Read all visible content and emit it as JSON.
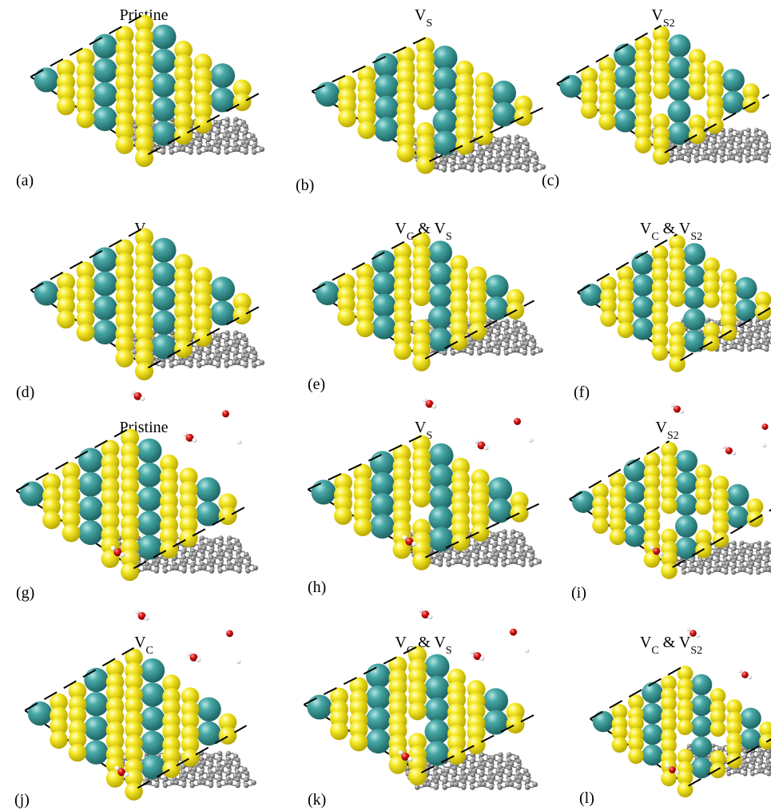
{
  "figure": {
    "colors": {
      "sulfur": "#f5e61c",
      "molybdenum": "#3c9e9c",
      "carbon": "#8a8a8a",
      "oxygen": "#d81414",
      "hydrogen": "#ffffff",
      "cell_edge": "#000000"
    },
    "panels": [
      {
        "label": "(a)",
        "title": {
          "main": "Pristine",
          "sub": ""
        },
        "defect": "pristine",
        "adsorbates": false
      },
      {
        "label": "(b)",
        "title": {
          "main": "V",
          "sub": "S"
        },
        "defect": "vs",
        "adsorbates": false
      },
      {
        "label": "(c)",
        "title": {
          "main": "V",
          "sub": "S2"
        },
        "defect": "vs2",
        "adsorbates": false
      },
      {
        "label": "(d)",
        "title": {
          "main": "V",
          "sub": "C"
        },
        "defect": "vc",
        "adsorbates": false
      },
      {
        "label": "(e)",
        "title": {
          "main": "V",
          "sub": "C",
          "main2": " & V",
          "sub2": "S"
        },
        "defect": "vcvs",
        "adsorbates": false
      },
      {
        "label": "(f)",
        "title": {
          "main": "V",
          "sub": "C",
          "main2": " & V",
          "sub2": "S2"
        },
        "defect": "vcvs2",
        "adsorbates": false
      },
      {
        "label": "(g)",
        "title": {
          "main": "Pristine",
          "sub": ""
        },
        "defect": "pristine",
        "adsorbates": true
      },
      {
        "label": "(h)",
        "title": {
          "main": "V",
          "sub": "S"
        },
        "defect": "vs",
        "adsorbates": true
      },
      {
        "label": "(i)",
        "title": {
          "main": "V",
          "sub": "S2"
        },
        "defect": "vs2",
        "adsorbates": true
      },
      {
        "label": "(j)",
        "title": {
          "main": "V",
          "sub": "C"
        },
        "defect": "vc",
        "adsorbates": true
      },
      {
        "label": "(k)",
        "title": {
          "main": "V",
          "sub": "C",
          "main2": " & V",
          "sub2": "S"
        },
        "defect": "vcvs",
        "adsorbates": true
      },
      {
        "label": "(l)",
        "title": {
          "main": "V",
          "sub": "C",
          "main2": " & V",
          "sub2": "S2"
        },
        "defect": "vcvs2",
        "adsorbates": true
      }
    ]
  }
}
